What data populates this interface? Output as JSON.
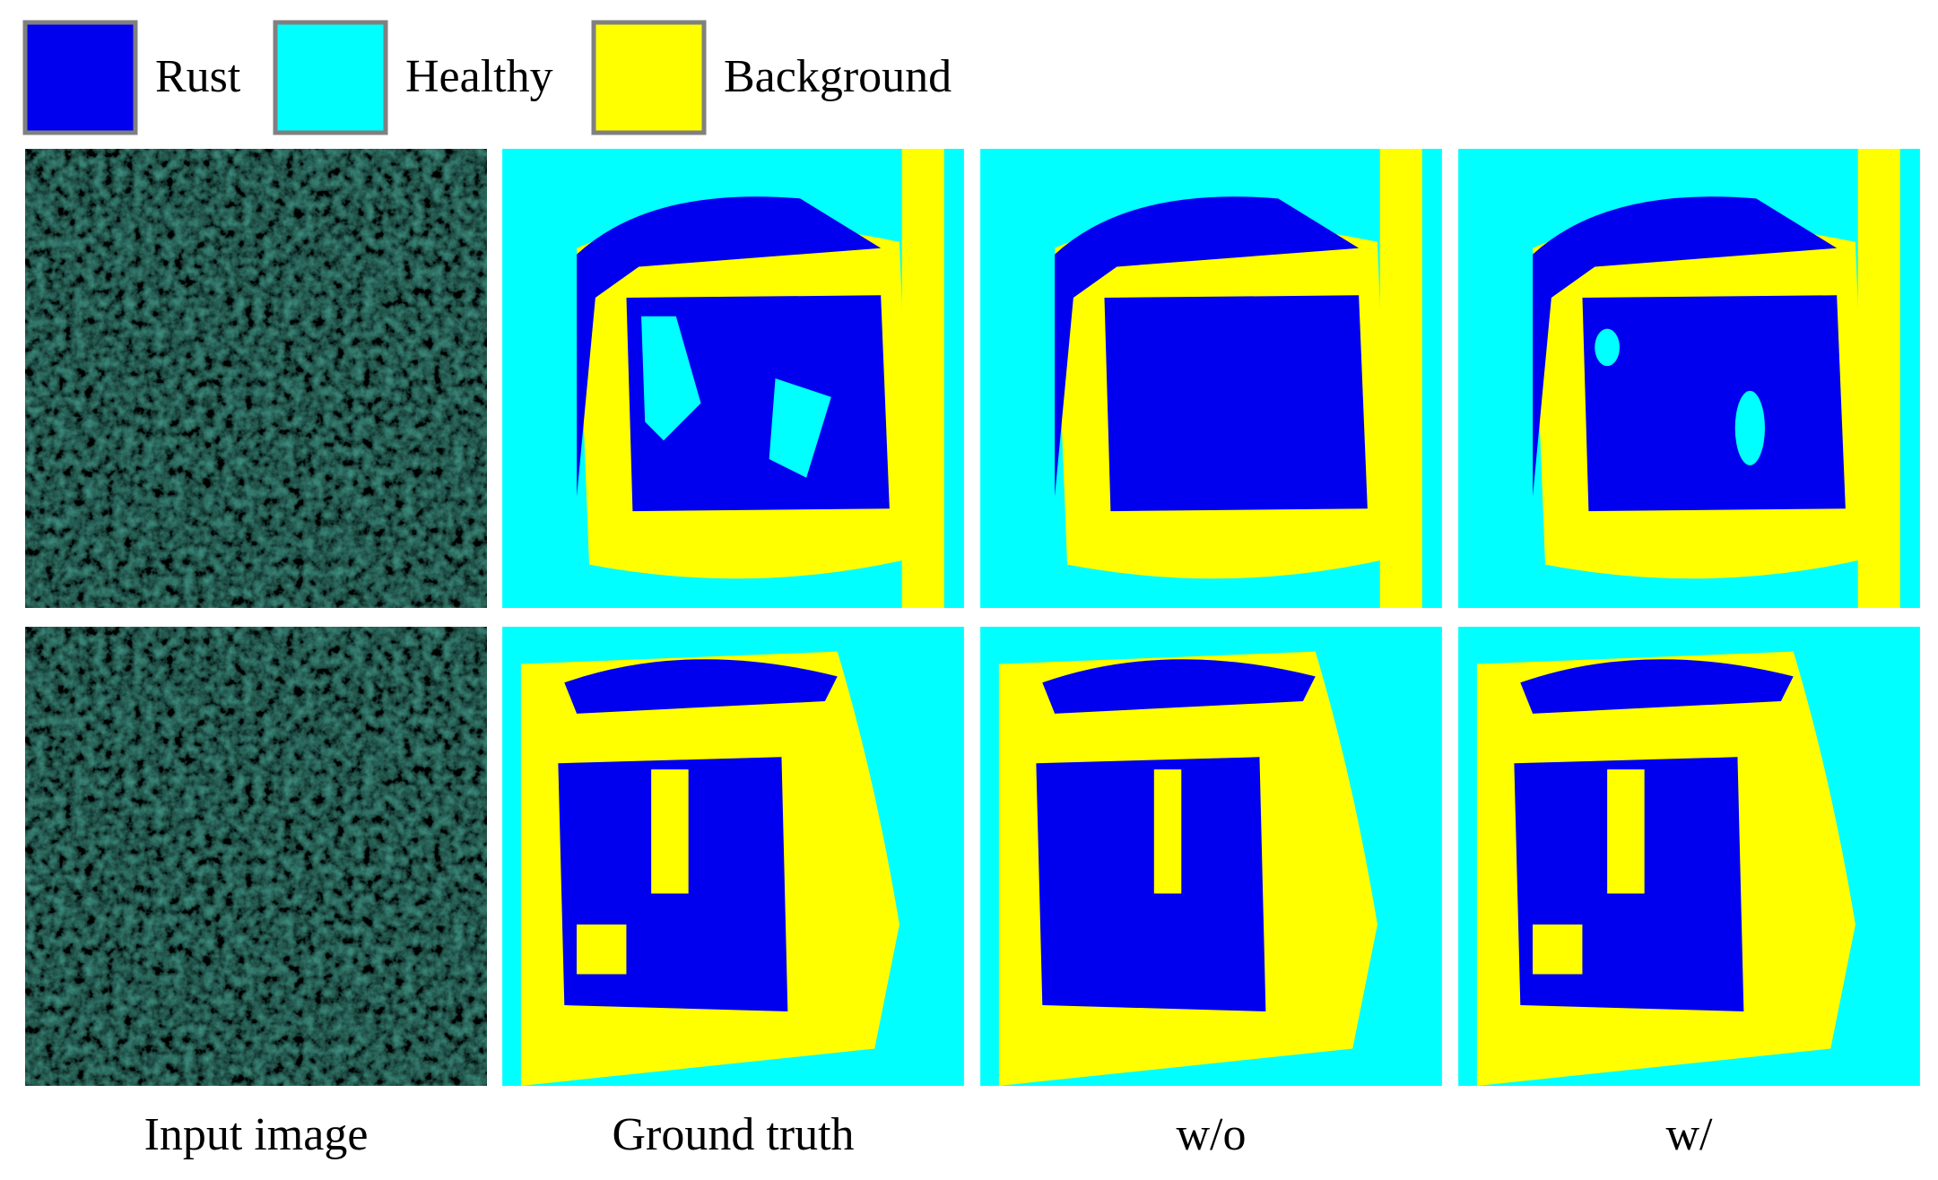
{
  "legend": {
    "items": [
      {
        "label": "Rust",
        "color": "#0000ee"
      },
      {
        "label": "Healthy",
        "color": "#00ffff"
      },
      {
        "label": "Background",
        "color": "#ffff00"
      }
    ]
  },
  "columns": [
    "Input image",
    "Ground truth",
    "w/o",
    "w/"
  ]
}
